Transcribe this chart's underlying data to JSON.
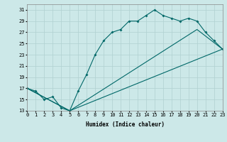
{
  "xlabel": "Humidex (Indice chaleur)",
  "xlim": [
    0,
    23
  ],
  "ylim": [
    13,
    32
  ],
  "background_color": "#cce8e8",
  "grid_color": "#b0d0d0",
  "line_color": "#006868",
  "line1_x": [
    0,
    1,
    2,
    3,
    4,
    5,
    6,
    7,
    8,
    9,
    10,
    11,
    12,
    13,
    14,
    15,
    16,
    17,
    18,
    19,
    20,
    21,
    22,
    23
  ],
  "line1_y": [
    17,
    16.5,
    15,
    15.5,
    13.5,
    13,
    16.5,
    19.5,
    23.0,
    25.5,
    27,
    27.5,
    29,
    29,
    30,
    31,
    30,
    29.5,
    29,
    29.5,
    29,
    27,
    25.5,
    24
  ],
  "line2_x": [
    0,
    5,
    23
  ],
  "line2_y": [
    17,
    13,
    24
  ],
  "line3_x": [
    0,
    5,
    20,
    23
  ],
  "line3_y": [
    17,
    13,
    27.5,
    24
  ],
  "yticks": [
    13,
    15,
    17,
    19,
    21,
    23,
    25,
    27,
    29,
    31
  ],
  "xticks": [
    0,
    1,
    2,
    3,
    4,
    5,
    6,
    7,
    8,
    9,
    10,
    11,
    12,
    13,
    14,
    15,
    16,
    17,
    18,
    19,
    20,
    21,
    22,
    23
  ],
  "tick_fontsize": 5,
  "xlabel_fontsize": 5.5
}
